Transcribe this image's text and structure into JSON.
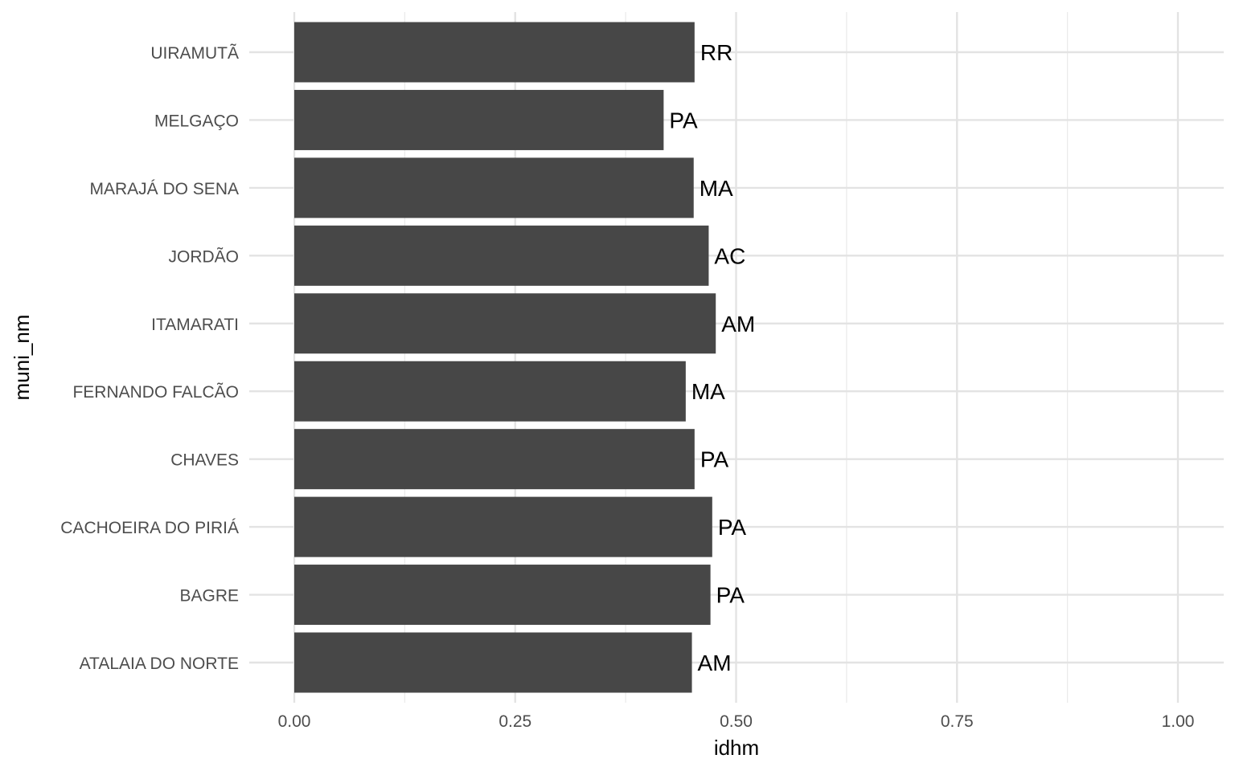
{
  "chart_data": {
    "type": "bar",
    "orientation": "horizontal",
    "xlabel": "idhm",
    "ylabel": "muni_nm",
    "xlim": [
      0,
      1.05
    ],
    "x_ticks": [
      "0.00",
      "0.25",
      "0.50",
      "0.75",
      "1.00"
    ],
    "x_tick_values": [
      0,
      0.25,
      0.5,
      0.75,
      1.0
    ],
    "grid": true,
    "bar_color": "#474747",
    "categories": [
      "UIRAMUTÃ",
      "MELGAÇO",
      "MARAJÁ DO SENA",
      "JORDÃO",
      "ITAMARATI",
      "FERNANDO FALCÃO",
      "CHAVES",
      "CACHOEIRA DO PIRIÁ",
      "BAGRE",
      "ATALAIA DO NORTE"
    ],
    "values": [
      0.453,
      0.418,
      0.452,
      0.469,
      0.477,
      0.443,
      0.453,
      0.473,
      0.471,
      0.45
    ],
    "data_labels": [
      "RR",
      "PA",
      "MA",
      "AC",
      "AM",
      "MA",
      "PA",
      "PA",
      "PA",
      "AM"
    ]
  }
}
